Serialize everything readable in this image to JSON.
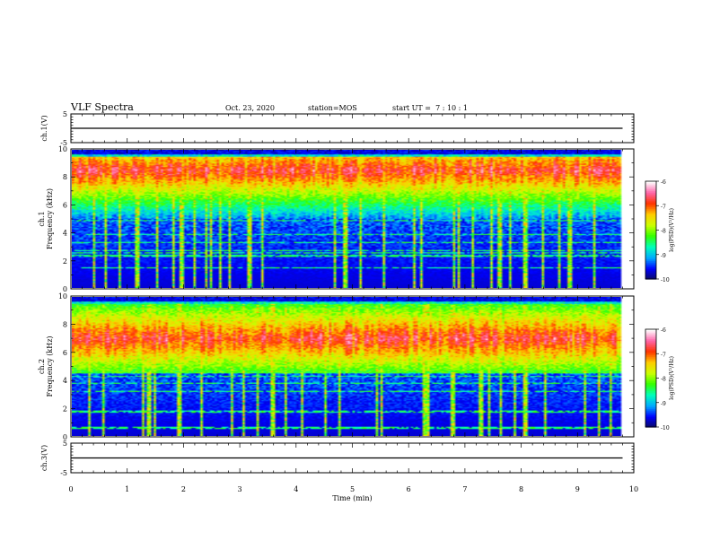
{
  "header": {
    "title": "VLF Spectra",
    "date": "Oct. 23, 2020",
    "station": "station=MOS",
    "start": "start UT =  7 : 10 : 1"
  },
  "colors": {
    "background": "#000000",
    "trace": "#000000",
    "colormap": [
      "#0a0a60",
      "#0000ff",
      "#00aaff",
      "#00ffbb",
      "#33ff00",
      "#ccff00",
      "#ffcc00",
      "#ff3300",
      "#ff66aa",
      "#ffffff"
    ]
  },
  "chart_data": [
    {
      "type": "line",
      "panel": "ch1-waveform",
      "ylabel": "ch.1(V)",
      "ylim": [
        -5,
        5
      ],
      "yticks": [
        "5",
        "-5"
      ],
      "x": [
        0,
        9.8
      ],
      "y": [
        0,
        0
      ],
      "xlim": [
        0,
        10
      ]
    },
    {
      "type": "heatmap",
      "panel": "ch1-spectrogram",
      "ylabel": "ch.1\nFrequency (kHz)",
      "ylim": [
        0,
        10
      ],
      "yticks": [
        "0",
        "2",
        "4",
        "6",
        "8",
        "10"
      ],
      "xlim": [
        0,
        10
      ],
      "data_xrange": [
        0,
        9.8
      ],
      "emission_band_khz": [
        5,
        9.5
      ],
      "peak_khz": 8.5,
      "colorbar": {
        "label": "log(PSD)(V²/Hz)",
        "ticks": [
          "-6",
          "-7",
          "-8",
          "-9",
          "-10"
        ],
        "range": [
          -10,
          -6
        ]
      }
    },
    {
      "type": "heatmap",
      "panel": "ch2-spectrogram",
      "ylabel": "ch.2\nFrequency (kHz)",
      "ylim": [
        0,
        10
      ],
      "yticks": [
        "0",
        "2",
        "4",
        "6",
        "8",
        "10"
      ],
      "xlim": [
        0,
        10
      ],
      "data_xrange": [
        0,
        9.8
      ],
      "emission_band_khz": [
        4.5,
        9.5
      ],
      "peak_khz": 7,
      "colorbar": {
        "label": "log(PSD)(V²/Hz)",
        "ticks": [
          "-6",
          "-7",
          "-8",
          "-9",
          "-10"
        ],
        "range": [
          -10,
          -6
        ]
      }
    },
    {
      "type": "line",
      "panel": "ch3-waveform",
      "ylabel": "ch.3(V)",
      "ylim": [
        -5,
        5
      ],
      "yticks": [
        "5",
        "-5"
      ],
      "x": [
        0,
        9.8
      ],
      "y": [
        0,
        0
      ],
      "xlim": [
        0,
        10
      ],
      "xlabel": "Time (min)",
      "xticks": [
        "0",
        "1",
        "2",
        "3",
        "4",
        "5",
        "6",
        "7",
        "8",
        "9",
        "10"
      ]
    }
  ]
}
